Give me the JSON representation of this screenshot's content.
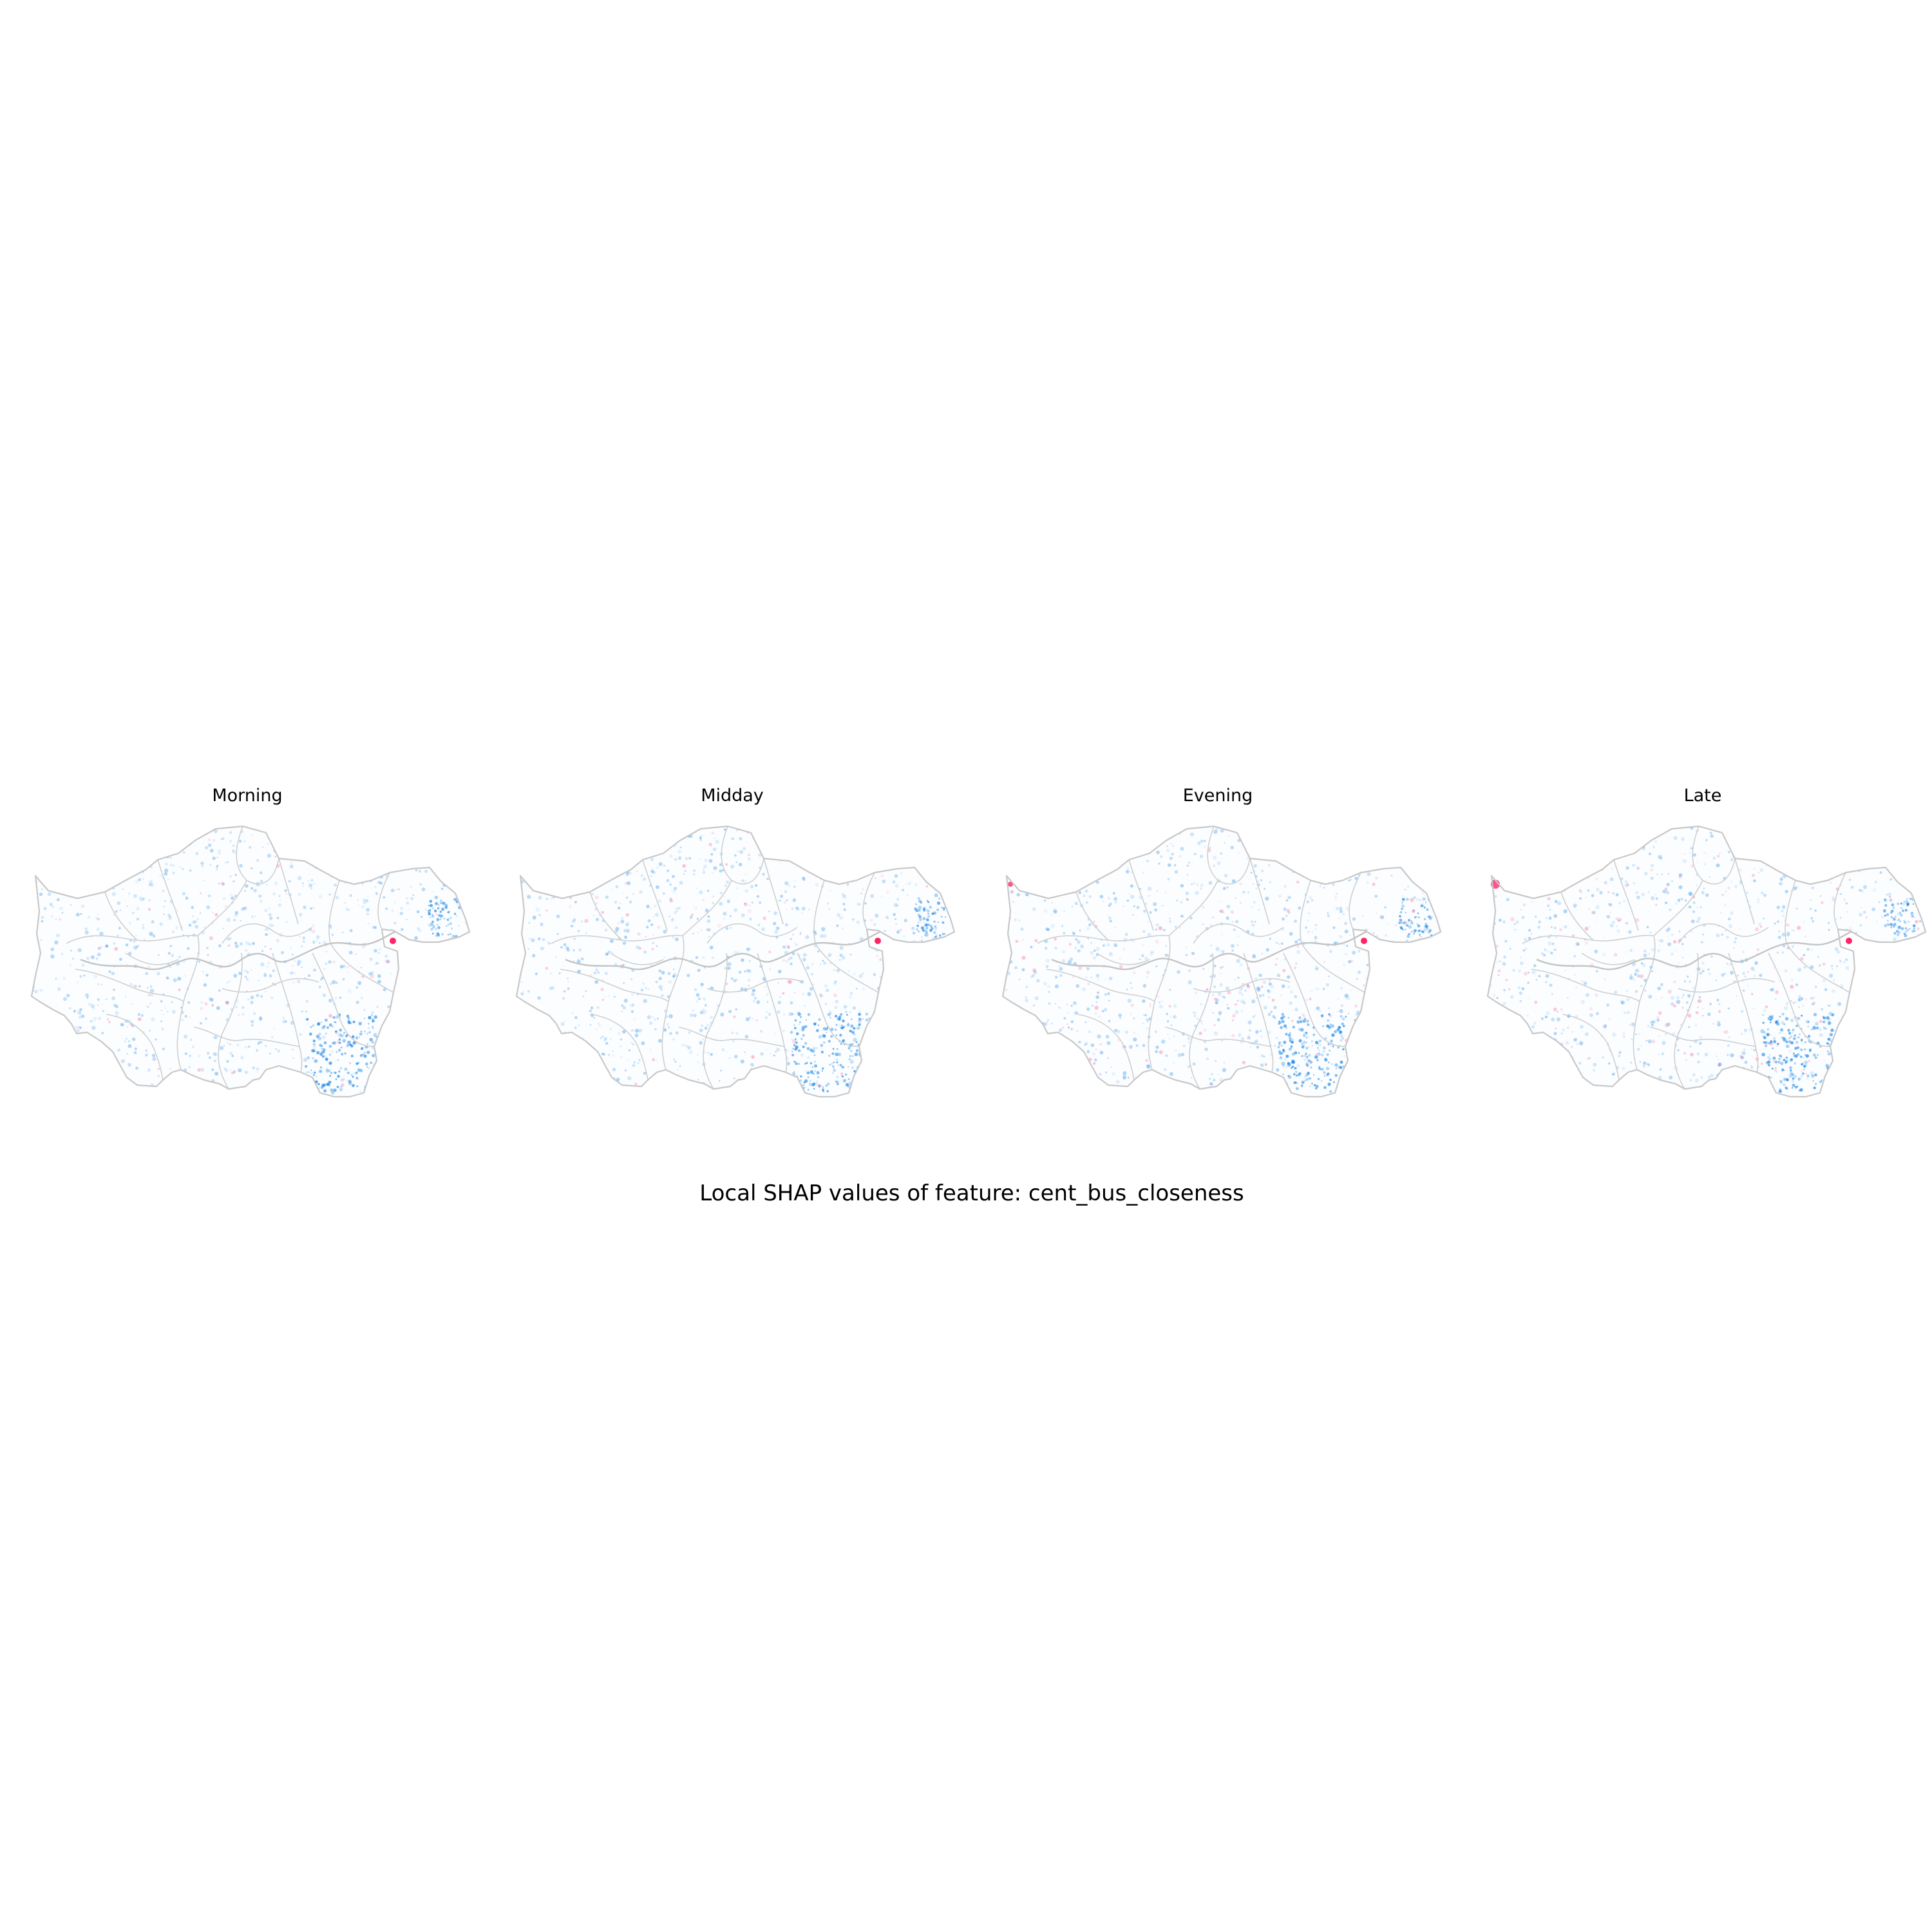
{
  "figure": {
    "title": "Local SHAP values of feature: cent_bus_closeness"
  },
  "colors": {
    "negative": "#1e88e5",
    "positive": "#ff0d57",
    "boundary": "#c8c8c8"
  },
  "panels": [
    {
      "title": "Morning"
    },
    {
      "title": "Midday"
    },
    {
      "title": "Evening"
    },
    {
      "title": "Late"
    }
  ]
}
